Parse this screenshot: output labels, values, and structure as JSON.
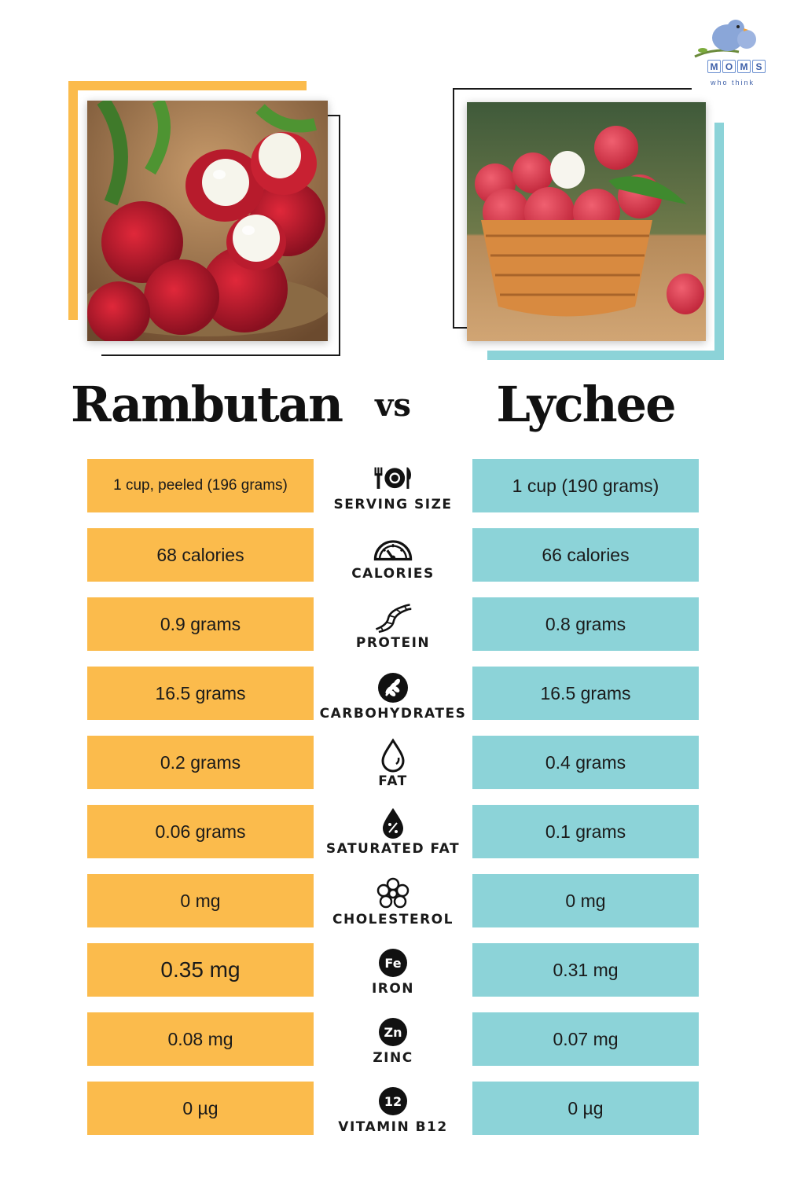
{
  "logo": {
    "letters": [
      "M",
      "O",
      "M",
      "S"
    ],
    "subtitle": "who think",
    "icon": "bird-icon"
  },
  "left_fruit": {
    "name": "Rambutan",
    "image": "rambutan-photo",
    "color": "#fbbb4c"
  },
  "vs_label": "vs",
  "right_fruit": {
    "name": "Lychee",
    "image": "lychee-photo",
    "color": "#8cd3d8"
  },
  "rows": [
    {
      "label": "SERVING SIZE",
      "icon": "cutlery-plate-icon",
      "left": "1 cup, peeled (196 grams)",
      "right": "1 cup (190 grams)"
    },
    {
      "label": "CALORIES",
      "icon": "gauge-icon",
      "left": "68 calories",
      "right": "66 calories"
    },
    {
      "label": "PROTEIN",
      "icon": "dna-icon",
      "left": "0.9 grams",
      "right": "0.8 grams"
    },
    {
      "label": "CARBOHYDRATES",
      "icon": "wheat-icon",
      "left": "16.5 grams",
      "right": "16.5 grams"
    },
    {
      "label": "FAT",
      "icon": "droplet-icon",
      "left": "0.2 grams",
      "right": "0.4 grams"
    },
    {
      "label": "SATURATED FAT",
      "icon": "percent-drop-icon",
      "left": "0.06 grams",
      "right": "0.1 grams"
    },
    {
      "label": "CHOLESTEROL",
      "icon": "molecule-icon",
      "left": "0 mg",
      "right": "0 mg"
    },
    {
      "label": "IRON",
      "icon": "fe-badge-icon",
      "badge": "Fe",
      "left": "0.35 mg",
      "right": "0.31 mg"
    },
    {
      "label": "ZINC",
      "icon": "zn-badge-icon",
      "badge": "Zn",
      "left": "0.08 mg",
      "right": "0.07 mg"
    },
    {
      "label": "VITAMIN B12",
      "icon": "b12-badge-icon",
      "badge": "12",
      "left": "0 µg",
      "right": "0 µg"
    }
  ]
}
